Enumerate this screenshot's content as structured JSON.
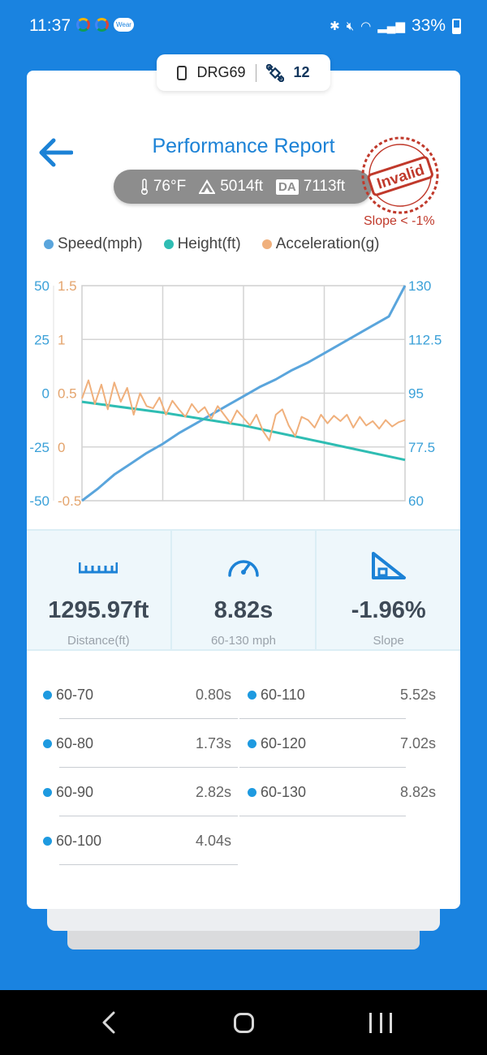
{
  "status_bar": {
    "time": "11:37",
    "wear_label": "Wear",
    "battery": "33%"
  },
  "device": {
    "name": "DRG69",
    "satellites": "12"
  },
  "header": {
    "title": "Performance Report"
  },
  "conditions": {
    "temperature": "76°F",
    "altitude": "5014ft",
    "da_label": "DA",
    "density_altitude": "7113ft"
  },
  "stamp": {
    "label": "Invalid",
    "note": "Slope < -1%",
    "color": "#c0392b"
  },
  "legend": [
    {
      "label": "Speed(mph)",
      "color": "#5aa5dc"
    },
    {
      "label": "Height(ft)",
      "color": "#2fbdb3"
    },
    {
      "label": "Acceleration(g)",
      "color": "#f0b07c"
    }
  ],
  "chart_data": {
    "type": "line",
    "grid": true,
    "axes": {
      "left_outer": {
        "ticks": [
          "50",
          "25",
          "0",
          "-25",
          "-50"
        ],
        "range": [
          -50,
          50
        ],
        "color": "#3aa0d8"
      },
      "left_inner": {
        "ticks": [
          "1.5",
          "1",
          "0.5",
          "0",
          "-0.5"
        ],
        "range": [
          -0.5,
          1.5
        ],
        "color": "#e4a46d"
      },
      "right": {
        "ticks": [
          "130",
          "112.5",
          "95",
          "77.5",
          "60"
        ],
        "range": [
          60,
          130
        ],
        "color": "#3aa0d8"
      }
    },
    "series": [
      {
        "name": "Speed(mph)",
        "axis": "right",
        "color": "#5aa5dc",
        "x": [
          0,
          0.05,
          0.1,
          0.15,
          0.2,
          0.25,
          0.3,
          0.35,
          0.4,
          0.45,
          0.5,
          0.55,
          0.6,
          0.65,
          0.7,
          0.75,
          0.8,
          0.85,
          0.9,
          0.95,
          1.0
        ],
        "y": [
          60,
          64,
          68.5,
          72,
          75.5,
          78.5,
          82,
          85,
          88,
          91,
          94,
          97,
          99.5,
          102.5,
          105,
          108,
          111,
          114,
          117,
          120,
          130
        ]
      },
      {
        "name": "Height(ft)",
        "axis": "left_outer",
        "color": "#2fbdb3",
        "x": [
          0,
          0.25,
          0.5,
          0.75,
          1.0
        ],
        "y": [
          -4,
          -9,
          -15,
          -23,
          -31
        ]
      },
      {
        "name": "Acceleration(g)",
        "axis": "left_inner",
        "color": "#f0b07c",
        "x": [
          0,
          0.02,
          0.04,
          0.06,
          0.08,
          0.1,
          0.12,
          0.14,
          0.16,
          0.18,
          0.2,
          0.22,
          0.24,
          0.26,
          0.28,
          0.3,
          0.32,
          0.34,
          0.36,
          0.38,
          0.4,
          0.42,
          0.44,
          0.46,
          0.48,
          0.5,
          0.52,
          0.54,
          0.56,
          0.58,
          0.6,
          0.62,
          0.64,
          0.66,
          0.68,
          0.7,
          0.72,
          0.74,
          0.76,
          0.78,
          0.8,
          0.82,
          0.84,
          0.86,
          0.88,
          0.9,
          0.92,
          0.94,
          0.96,
          0.98,
          1.0
        ],
        "y": [
          0.45,
          0.62,
          0.4,
          0.58,
          0.35,
          0.6,
          0.42,
          0.55,
          0.3,
          0.5,
          0.38,
          0.36,
          0.46,
          0.3,
          0.43,
          0.35,
          0.28,
          0.4,
          0.32,
          0.37,
          0.26,
          0.38,
          0.3,
          0.22,
          0.34,
          0.27,
          0.2,
          0.3,
          0.15,
          0.06,
          0.3,
          0.35,
          0.2,
          0.1,
          0.28,
          0.25,
          0.18,
          0.3,
          0.22,
          0.29,
          0.24,
          0.3,
          0.18,
          0.28,
          0.2,
          0.24,
          0.17,
          0.25,
          0.19,
          0.23,
          0.25
        ]
      }
    ]
  },
  "stats": [
    {
      "icon": "ruler-icon",
      "value": "1295.97ft",
      "caption": "Distance(ft)"
    },
    {
      "icon": "speedometer-icon",
      "value": "8.82s",
      "caption": "60-130 mph"
    },
    {
      "icon": "slope-icon",
      "value": "-1.96%",
      "caption": "Slope"
    }
  ],
  "splits": [
    {
      "name": "60-70",
      "time": "0.80s"
    },
    {
      "name": "60-80",
      "time": "1.73s"
    },
    {
      "name": "60-90",
      "time": "2.82s"
    },
    {
      "name": "60-100",
      "time": "4.04s"
    },
    {
      "name": "60-110",
      "time": "5.52s"
    },
    {
      "name": "60-120",
      "time": "7.02s"
    },
    {
      "name": "60-130",
      "time": "8.82s"
    }
  ]
}
